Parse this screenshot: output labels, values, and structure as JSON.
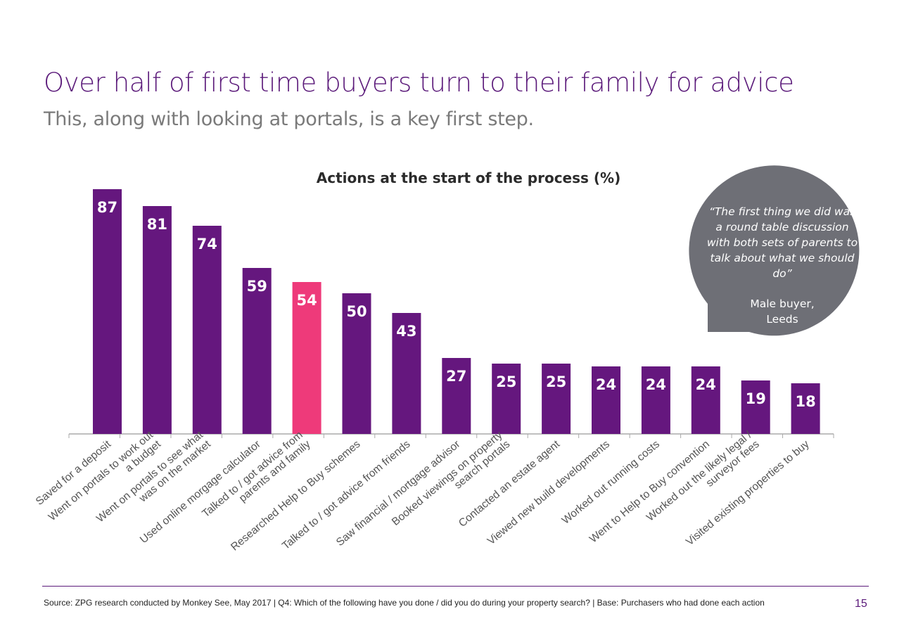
{
  "slide": {
    "title": "Over half of first time buyers turn to their family for advice",
    "subtitle": "This, along with looking at portals, is a key first step.",
    "source": "Source: ZPG research conducted by Monkey See, May 2017 | Q4: Which of the following have you done / did you do during your property search? | Base: Purchasers who had done each action",
    "page_number": "15"
  },
  "quote": {
    "text": "“The first thing we did was a round table discussion with both sets of parents to talk about what we should do”",
    "attribution_line1": "Male buyer,",
    "attribution_line2": "Leeds"
  },
  "colors": {
    "bar": "#65177e",
    "highlight": "#ee3a7a",
    "bubble": "#6e6f76",
    "axis": "#aaaaaa"
  },
  "chart_data": {
    "type": "bar",
    "title": "Actions at the start of the process (%)",
    "xlabel": "",
    "ylabel": "",
    "ylim": [
      0,
      100
    ],
    "highlight_index": 4,
    "categories": [
      [
        "Saved for a deposit"
      ],
      [
        "Went on portals to work out",
        "a budget"
      ],
      [
        "Went on portals to see what",
        "was on the market"
      ],
      [
        "Used online morgage calculator"
      ],
      [
        "Talked to / got advice from",
        "parents and family"
      ],
      [
        "Researched Help to Buy schemes"
      ],
      [
        "Talked to / got advice from friends"
      ],
      [
        "Saw financial / mortgage advisor"
      ],
      [
        "Booked viewings on property",
        "search portals"
      ],
      [
        "Contacted an estate agent"
      ],
      [
        "Viewed new build developments"
      ],
      [
        "Worked out running costs"
      ],
      [
        "Went to Help to Buy convention"
      ],
      [
        "Worked out the likely legal /",
        "surveyor fees"
      ],
      [
        "Visited existing properties to buy"
      ]
    ],
    "values": [
      87,
      81,
      74,
      59,
      54,
      50,
      43,
      27,
      25,
      25,
      24,
      24,
      24,
      19,
      18
    ]
  }
}
